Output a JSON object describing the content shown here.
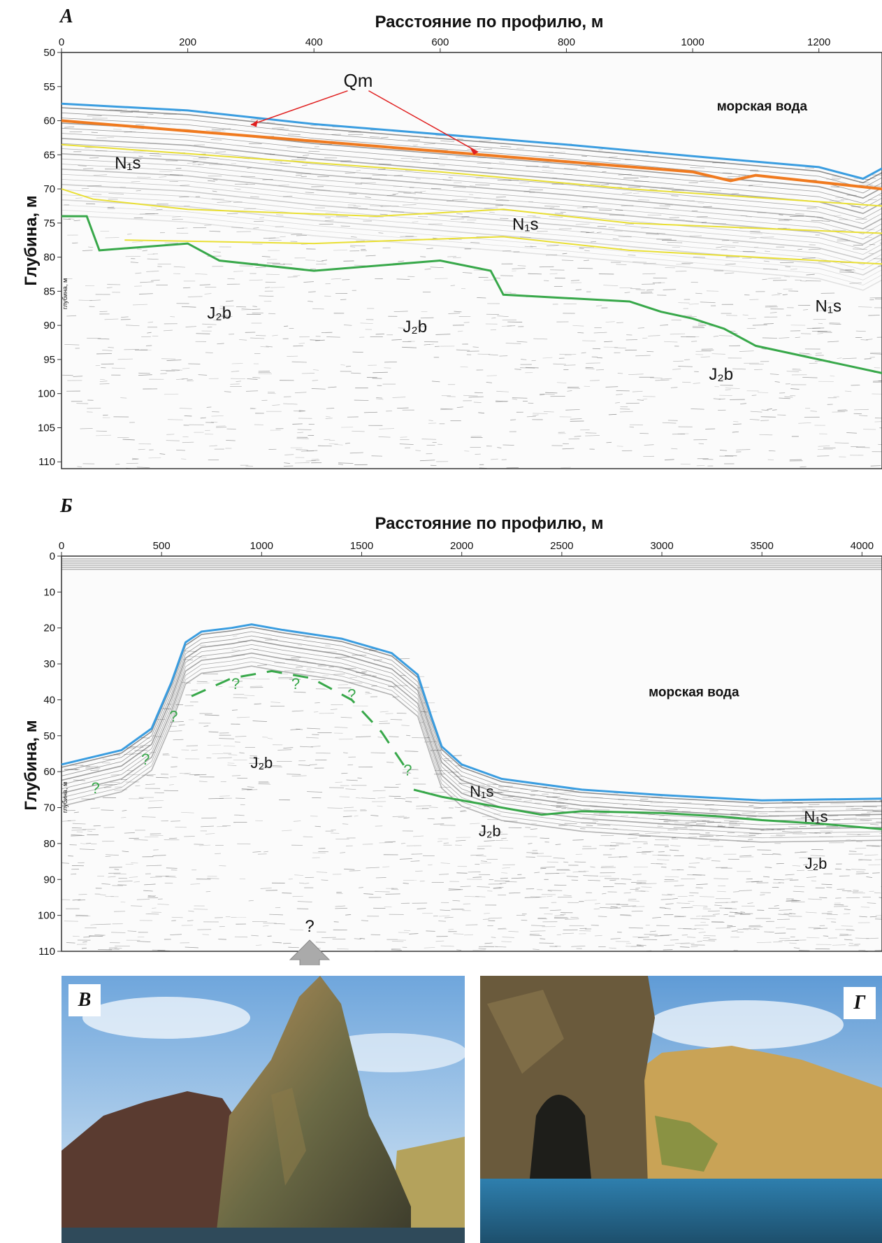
{
  "panels": {
    "a": {
      "letter": "А",
      "x_title": "Расстояние по профилю, м",
      "y_title": "Глубина, м",
      "x_ticks": [
        "0",
        "200",
        "400",
        "600",
        "800",
        "1000",
        "1200"
      ],
      "x_tick_values": [
        0,
        200,
        400,
        600,
        800,
        1000,
        1200
      ],
      "x_range": [
        0,
        1300
      ],
      "y_ticks": [
        "50",
        "55",
        "60",
        "65",
        "70",
        "75",
        "80",
        "85",
        "90",
        "95",
        "100",
        "105",
        "110"
      ],
      "y_tick_values": [
        50,
        55,
        60,
        65,
        70,
        75,
        80,
        85,
        90,
        95,
        100,
        105,
        110
      ],
      "y_range": [
        50,
        111
      ],
      "inner_axis_label": "глубина, м",
      "water_label": "морская вода",
      "qm_label": "Qm",
      "formation_labels": [
        {
          "text": "N₁s",
          "x": 105,
          "y": 67
        },
        {
          "text": "N₁s",
          "x": 735,
          "y": 76
        },
        {
          "text": "N₁s",
          "x": 1215,
          "y": 88
        },
        {
          "text": "J₂b",
          "x": 250,
          "y": 89
        },
        {
          "text": "J₂b",
          "x": 560,
          "y": 91
        },
        {
          "text": "J₂b",
          "x": 1045,
          "y": 98
        }
      ],
      "horizons": {
        "seafloor": [
          [
            0,
            57.5
          ],
          [
            200,
            58.5
          ],
          [
            400,
            60.5
          ],
          [
            600,
            62
          ],
          [
            800,
            63.5
          ],
          [
            1000,
            65.2
          ],
          [
            1200,
            66.8
          ],
          [
            1270,
            68.5
          ],
          [
            1300,
            67
          ]
        ],
        "qm_base": [
          [
            0,
            60
          ],
          [
            200,
            61.5
          ],
          [
            400,
            63
          ],
          [
            600,
            64.5
          ],
          [
            800,
            66
          ],
          [
            1000,
            67.5
          ],
          [
            1060,
            68.8
          ],
          [
            1100,
            68
          ],
          [
            1300,
            70
          ]
        ],
        "n1s_upper": [
          [
            0,
            63.5
          ],
          [
            300,
            65.5
          ],
          [
            600,
            67.5
          ],
          [
            900,
            70
          ],
          [
            1300,
            72.5
          ]
        ],
        "n1s_middle": [
          [
            0,
            70
          ],
          [
            50,
            71.5
          ],
          [
            200,
            73
          ],
          [
            500,
            74
          ],
          [
            700,
            73
          ],
          [
            900,
            75
          ],
          [
            1300,
            76.5
          ]
        ],
        "n1s_lower": [
          [
            100,
            77.5
          ],
          [
            400,
            78
          ],
          [
            700,
            77
          ],
          [
            900,
            79
          ],
          [
            1300,
            81
          ]
        ],
        "jurassic_top": [
          [
            0,
            74
          ],
          [
            40,
            74
          ],
          [
            60,
            79
          ],
          [
            200,
            78
          ],
          [
            250,
            80.5
          ],
          [
            400,
            82
          ],
          [
            600,
            80.5
          ],
          [
            680,
            82
          ],
          [
            700,
            85.5
          ],
          [
            900,
            86.5
          ],
          [
            950,
            88
          ],
          [
            1000,
            89
          ],
          [
            1050,
            90.5
          ],
          [
            1100,
            93
          ],
          [
            1200,
            95
          ],
          [
            1300,
            97
          ]
        ]
      },
      "colors": {
        "seafloor": "#3a9de0",
        "qm": "#f07a1f",
        "n1s": "#e9df34",
        "jurassic": "#38a84a",
        "arrow": "#e02020"
      }
    },
    "b": {
      "letter": "Б",
      "x_title": "Расстояние по профилю, м",
      "y_title": "Глубина, м",
      "x_ticks": [
        "0",
        "500",
        "1000",
        "1500",
        "2000",
        "2500",
        "3000",
        "3500",
        "4000"
      ],
      "x_tick_values": [
        0,
        500,
        1000,
        1500,
        2000,
        2500,
        3000,
        3500,
        4000
      ],
      "x_range": [
        0,
        4100
      ],
      "y_ticks": [
        "0",
        "10",
        "20",
        "30",
        "40",
        "50",
        "60",
        "70",
        "80",
        "90",
        "100",
        "110"
      ],
      "y_tick_values": [
        0,
        10,
        20,
        30,
        40,
        50,
        60,
        70,
        80,
        90,
        100,
        110
      ],
      "y_range": [
        0,
        110
      ],
      "inner_axis_label": "глубина, м",
      "water_label": "морская вода",
      "arrow_label": "?",
      "formation_labels": [
        {
          "text": "J₂b",
          "x": 1000,
          "y": 59
        },
        {
          "text": "N₁s",
          "x": 2100,
          "y": 67
        },
        {
          "text": "J₂b",
          "x": 2140,
          "y": 78
        },
        {
          "text": "N₁s",
          "x": 3770,
          "y": 74
        },
        {
          "text": "J₂b",
          "x": 3770,
          "y": 87
        }
      ],
      "question_marks": [
        {
          "x": 170,
          "y": 66
        },
        {
          "x": 420,
          "y": 58
        },
        {
          "x": 560,
          "y": 46
        },
        {
          "x": 870,
          "y": 37
        },
        {
          "x": 1170,
          "y": 37
        },
        {
          "x": 1450,
          "y": 40
        },
        {
          "x": 1730,
          "y": 61
        }
      ],
      "horizons": {
        "seafloor": [
          [
            0,
            58
          ],
          [
            300,
            54
          ],
          [
            450,
            48
          ],
          [
            550,
            35
          ],
          [
            620,
            24
          ],
          [
            700,
            21
          ],
          [
            850,
            20
          ],
          [
            950,
            19
          ],
          [
            1100,
            20.5
          ],
          [
            1400,
            23
          ],
          [
            1650,
            27
          ],
          [
            1780,
            33
          ],
          [
            1850,
            45
          ],
          [
            1900,
            53
          ],
          [
            2000,
            58
          ],
          [
            2200,
            62
          ],
          [
            2600,
            65
          ],
          [
            3000,
            66.5
          ],
          [
            3500,
            68
          ],
          [
            4100,
            67.5
          ]
        ],
        "jurassic_top": [
          [
            1760,
            65
          ],
          [
            1900,
            67
          ],
          [
            2200,
            70
          ],
          [
            2400,
            72
          ],
          [
            2600,
            71
          ],
          [
            3000,
            71.5
          ],
          [
            3300,
            72.5
          ],
          [
            3500,
            73.5
          ],
          [
            3800,
            74.5
          ],
          [
            4100,
            76
          ]
        ],
        "uncertain_top": [
          [
            650,
            39
          ],
          [
            850,
            34
          ],
          [
            1050,
            32
          ],
          [
            1250,
            34
          ],
          [
            1450,
            40
          ],
          [
            1600,
            49
          ],
          [
            1720,
            59
          ]
        ]
      },
      "colors": {
        "seafloor": "#3a9de0",
        "jurassic": "#38a84a",
        "question": "#38a84a",
        "arrow": "#aaaaaa"
      }
    },
    "c": {
      "letter": "В"
    },
    "d": {
      "letter": "Г"
    }
  }
}
